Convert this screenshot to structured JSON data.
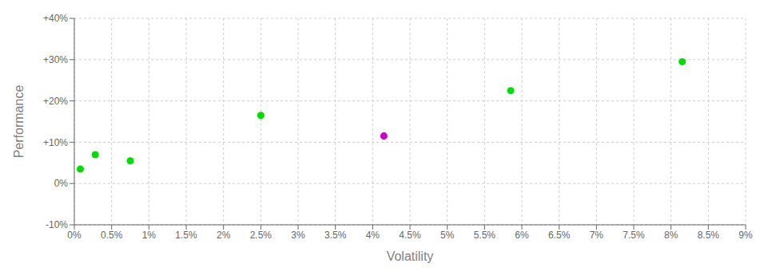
{
  "chart_data": {
    "type": "scatter",
    "xlabel": "Volatility",
    "ylabel": "Performance",
    "x": [
      0.08,
      0.28,
      0.75,
      2.5,
      4.15,
      5.85,
      8.15
    ],
    "values": [
      3.5,
      7.0,
      5.5,
      16.5,
      11.5,
      22.5,
      29.5
    ],
    "colors": [
      "#00dd00",
      "#00dd00",
      "#00dd00",
      "#00dd00",
      "#cc00cc",
      "#00dd00",
      "#00dd00"
    ],
    "xlim": [
      0,
      9
    ],
    "ylim": [
      -10,
      40
    ],
    "xticks": [
      {
        "value": 0,
        "label": "0%"
      },
      {
        "value": 0.5,
        "label": "0.5%"
      },
      {
        "value": 1.0,
        "label": "1%"
      },
      {
        "value": 1.5,
        "label": "1.5%"
      },
      {
        "value": 2.0,
        "label": "2%"
      },
      {
        "value": 2.5,
        "label": "2.5%"
      },
      {
        "value": 3.0,
        "label": "3%"
      },
      {
        "value": 3.5,
        "label": "3.5%"
      },
      {
        "value": 4.0,
        "label": "4%"
      },
      {
        "value": 4.5,
        "label": "4.5%"
      },
      {
        "value": 5.0,
        "label": "5%"
      },
      {
        "value": 5.5,
        "label": "5.5%"
      },
      {
        "value": 6.0,
        "label": "6%"
      },
      {
        "value": 6.5,
        "label": "6.5%"
      },
      {
        "value": 7.0,
        "label": "7%"
      },
      {
        "value": 7.5,
        "label": "7.5%"
      },
      {
        "value": 8.0,
        "label": "8%"
      },
      {
        "value": 8.5,
        "label": "8.5%"
      },
      {
        "value": 9.0,
        "label": "9%"
      }
    ],
    "yticks": [
      {
        "value": -10,
        "label": "-10%"
      },
      {
        "value": 0,
        "label": "0%"
      },
      {
        "value": 10,
        "label": "+10%"
      },
      {
        "value": 20,
        "label": "+20%"
      },
      {
        "value": 30,
        "label": "+30%"
      },
      {
        "value": 40,
        "label": "+40%"
      }
    ],
    "grid": true
  }
}
